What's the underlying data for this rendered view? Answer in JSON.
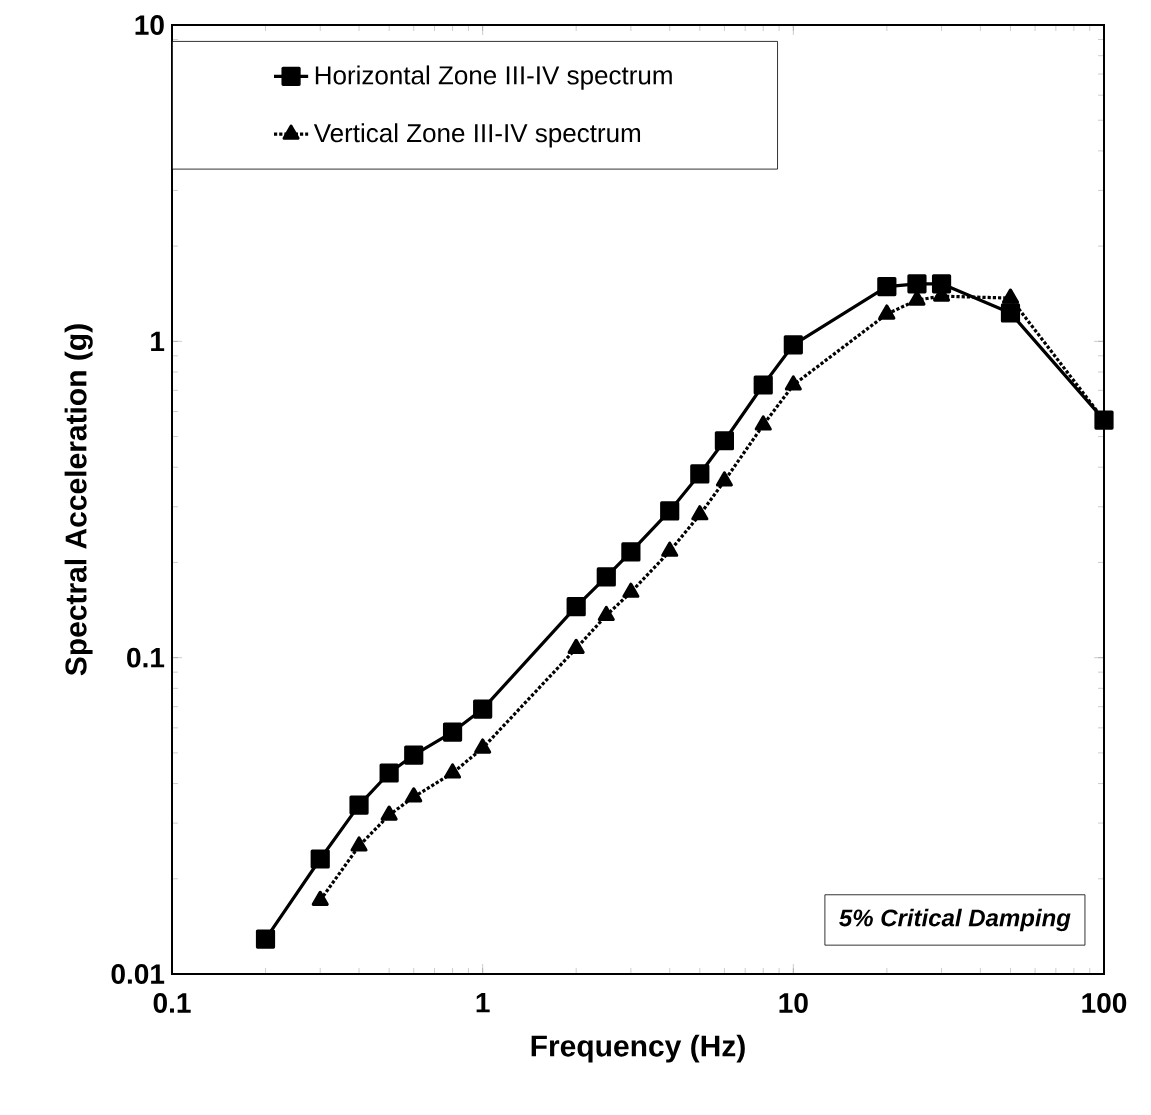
{
  "chart_data": {
    "type": "line",
    "xlabel": "Frequency (Hz)",
    "ylabel": "Spectral Acceleration (g)",
    "log": "xy",
    "xlim": [
      0.1,
      100
    ],
    "ylim": [
      0.01,
      10
    ],
    "xticks": [
      0.1,
      1,
      10,
      100
    ],
    "yticks": [
      0.01,
      0.1,
      1,
      10
    ],
    "legend": "top left",
    "grid": false,
    "annotations": [
      "*5% Critical Damping*"
    ],
    "series": [
      {
        "name": "Horizontal Zone III-IV spectrum",
        "color": "#000000",
        "marker": "square",
        "line_style": "solid",
        "x": [
          0.2,
          0.3,
          0.4,
          0.5,
          0.6,
          0.8,
          1,
          2,
          2.5,
          3,
          4,
          5,
          6,
          8,
          10,
          20,
          25,
          30,
          50,
          100
        ],
        "values": [
          0.0129,
          0.0231,
          0.0342,
          0.0432,
          0.0492,
          0.0582,
          0.0688,
          0.145,
          0.18,
          0.216,
          0.291,
          0.381,
          0.485,
          0.728,
          0.975,
          1.49,
          1.52,
          1.52,
          1.23,
          0.564
        ]
      },
      {
        "name": "Vertical Zone III-IV spectrum",
        "color": "#000000",
        "marker": "triangle",
        "line_style": "dotted",
        "x": [
          0.3,
          0.4,
          0.5,
          0.6,
          0.8,
          1,
          2,
          2.5,
          3,
          4,
          5,
          6,
          8,
          10,
          20,
          25,
          30,
          50,
          100
        ],
        "values": [
          0.0171,
          0.0254,
          0.0318,
          0.0363,
          0.0432,
          0.0518,
          0.107,
          0.136,
          0.161,
          0.217,
          0.283,
          0.362,
          0.544,
          0.728,
          1.22,
          1.35,
          1.39,
          1.37,
          0.564
        ]
      }
    ]
  }
}
